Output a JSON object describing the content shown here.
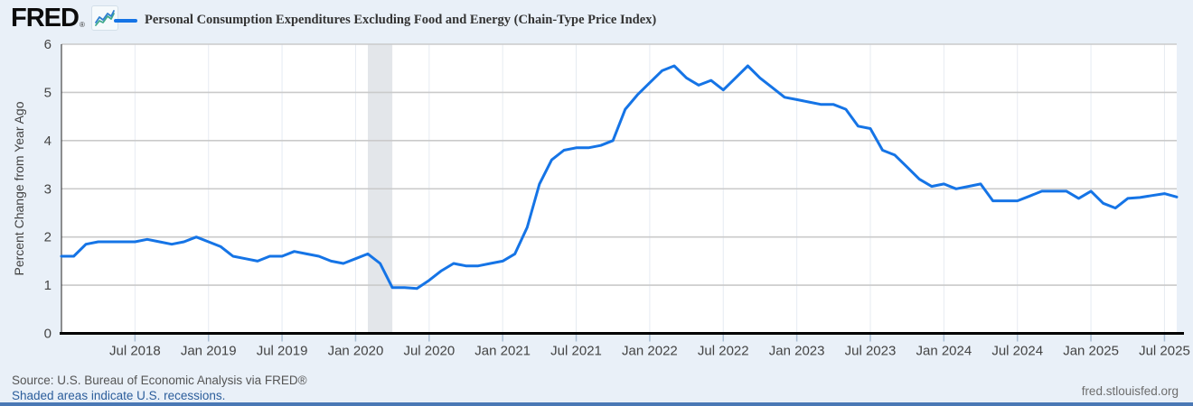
{
  "header": {
    "logo_text": "FRED",
    "logo_reg": "®"
  },
  "chart_data": {
    "type": "line",
    "title": "Personal Consumption Expenditures Excluding Food and Energy (Chain-Type Price Index)",
    "xlabel": "",
    "ylabel": "Percent Change from Year Ago",
    "x_start": "2018-01",
    "x_end": "2025-08",
    "frequency": "monthly",
    "ylim": [
      0,
      6
    ],
    "y_ticks": [
      0,
      1,
      2,
      3,
      4,
      5,
      6
    ],
    "x_tick_labels": [
      "Jul 2018",
      "Jan 2019",
      "Jul 2019",
      "Jan 2020",
      "Jul 2020",
      "Jan 2021",
      "Jul 2021",
      "Jan 2022",
      "Jul 2022",
      "Jan 2023",
      "Jul 2023",
      "Jan 2024",
      "Jul 2024",
      "Jan 2025",
      "Jul 2025"
    ],
    "x_first_tick_index": 6,
    "x_tick_step": 6,
    "grid": true,
    "legend_position": "top",
    "series": [
      {
        "name": "Personal Consumption Expenditures Excluding Food and Energy (Chain-Type Price Index)",
        "color": "#1574e6",
        "values": [
          1.6,
          1.6,
          1.85,
          1.9,
          1.9,
          1.9,
          1.9,
          1.95,
          1.9,
          1.85,
          1.9,
          2.0,
          1.9,
          1.8,
          1.6,
          1.55,
          1.5,
          1.6,
          1.6,
          1.7,
          1.65,
          1.6,
          1.5,
          1.45,
          1.55,
          1.65,
          1.45,
          0.95,
          0.95,
          0.93,
          1.1,
          1.3,
          1.45,
          1.4,
          1.4,
          1.45,
          1.5,
          1.65,
          2.2,
          3.1,
          3.6,
          3.8,
          3.85,
          3.85,
          3.9,
          4.0,
          4.65,
          4.95,
          5.2,
          5.45,
          5.55,
          5.3,
          5.15,
          5.25,
          5.05,
          5.3,
          5.55,
          5.3,
          5.1,
          4.9,
          4.85,
          4.8,
          4.75,
          4.75,
          4.65,
          4.3,
          4.25,
          3.8,
          3.7,
          3.45,
          3.2,
          3.05,
          3.1,
          3.0,
          3.05,
          3.1,
          2.75,
          2.75,
          2.75,
          2.85,
          2.95,
          2.95,
          2.95,
          2.8,
          2.95,
          2.7,
          2.6,
          2.8,
          2.82,
          2.86,
          2.9,
          2.83
        ]
      }
    ],
    "recessions": [
      {
        "start": "2020-02",
        "end": "2020-04",
        "start_index": 25,
        "end_index": 27
      }
    ],
    "colors": {
      "plot_background": "#ffffff",
      "grid": "#cacaca",
      "recession_band": "#e3e6ea",
      "axis": "#000000",
      "tick_label": "#444444",
      "tick_mark": "#aabfd4",
      "vertical_tick_line": "#e6ebf2"
    }
  },
  "footer": {
    "source": "Source: U.S. Bureau of Economic Analysis via FRED®",
    "recession_note": "Shaded areas indicate U.S. recessions.",
    "site": "fred.stlouisfed.org"
  },
  "colors": {
    "page_background": "#e9f0f8",
    "accent_bar": "#4a78b5",
    "link": "#2b5d9b",
    "series_line": "#1574e6"
  }
}
